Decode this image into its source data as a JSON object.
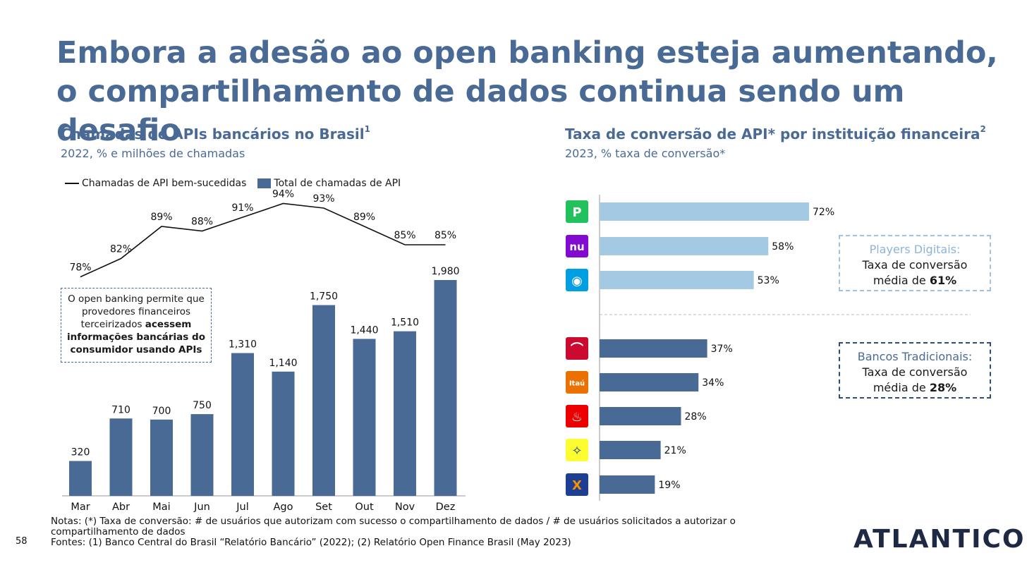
{
  "title": "Embora a adesão ao open banking esteja aumentando, o compartilhamento de dados continua sendo um desafio",
  "left": {
    "heading": "Chamadas de APIs bancários no Brasil",
    "heading_sup": "1",
    "subheading": "2022, % e milhões de chamadas",
    "legend_line": "Chamadas de API bem-sucedidas",
    "legend_bar": "Total de chamadas de API",
    "callout_a": "O open banking permite que provedores financeiros terceirizados ",
    "callout_b": "acessem informações bancárias do consumidor usando APIs"
  },
  "right": {
    "heading": "Taxa de conversão de API* por instituição financeira",
    "heading_sup": "2",
    "subheading": "2023, % taxa de conversão*",
    "digital_head": "Players Digitais:",
    "digital_l2": "Taxa de conversão",
    "digital_l3a": "média de ",
    "digital_l3b": "61%",
    "trad_head": "Bancos Tradicionais:",
    "trad_l2": "Taxa de conversão",
    "trad_l3a": "média de ",
    "trad_l3b": "28%"
  },
  "notes": {
    "line1": "Notas: (*) Taxa de conversão: # de usuários que autorizam com sucesso o compartilhamento de dados / # de usuários solicitados a autorizar o compartilhamento de dados",
    "line2": "Fontes: (1) Banco Central do Brasil “Relatório Bancário” (2022); (2) Relatório Open Finance Brasil (May 2023)"
  },
  "page_number": "58",
  "logo": "ATLANTICO",
  "colors": {
    "accent": "#4a6a96",
    "digital_bar": "#a3c9e3",
    "trad_bar": "#4a6a96"
  },
  "chart_data": [
    {
      "type": "bar",
      "title": "Chamadas de APIs bancários no Brasil",
      "categories": [
        "Mar",
        "Abr",
        "Mai",
        "Jun",
        "Jul",
        "Ago",
        "Set",
        "Out",
        "Nov",
        "Dez"
      ],
      "series": [
        {
          "name": "Total de chamadas de API",
          "type": "bar",
          "values": [
            320,
            710,
            700,
            750,
            1310,
            1140,
            1750,
            1440,
            1510,
            1980
          ],
          "labels": [
            "320",
            "710",
            "700",
            "750",
            "1,310",
            "1,140",
            "1,750",
            "1,440",
            "1,510",
            "1,980"
          ]
        },
        {
          "name": "Chamadas de API bem-sucedidas",
          "type": "line",
          "values": [
            78,
            82,
            89,
            88,
            91,
            94,
            93,
            89,
            85,
            85
          ],
          "labels": [
            "78%",
            "82%",
            "89%",
            "88%",
            "91%",
            "94%",
            "93%",
            "89%",
            "85%",
            "85%"
          ]
        }
      ],
      "ylim": [
        0,
        2000
      ]
    },
    {
      "type": "bar",
      "orientation": "horizontal",
      "title": "Taxa de conversão de API* por instituição financeira",
      "groups": [
        {
          "name": "Players Digitais",
          "items": [
            {
              "icon": "picpay-logo-icon",
              "value": 72,
              "label": "72%"
            },
            {
              "icon": "nubank-logo-icon",
              "value": 58,
              "label": "58%"
            },
            {
              "icon": "mercado-pago-logo-icon",
              "value": 53,
              "label": "53%"
            }
          ]
        },
        {
          "name": "Bancos Tradicionais",
          "items": [
            {
              "icon": "bradesco-logo-icon",
              "value": 37,
              "label": "37%"
            },
            {
              "icon": "itau-logo-icon",
              "value": 34,
              "label": "34%"
            },
            {
              "icon": "santander-logo-icon",
              "value": 28,
              "label": "28%"
            },
            {
              "icon": "banco-do-brasil-logo-icon",
              "value": 21,
              "label": "21%"
            },
            {
              "icon": "caixa-logo-icon",
              "value": 19,
              "label": "19%"
            }
          ]
        }
      ]
    }
  ]
}
